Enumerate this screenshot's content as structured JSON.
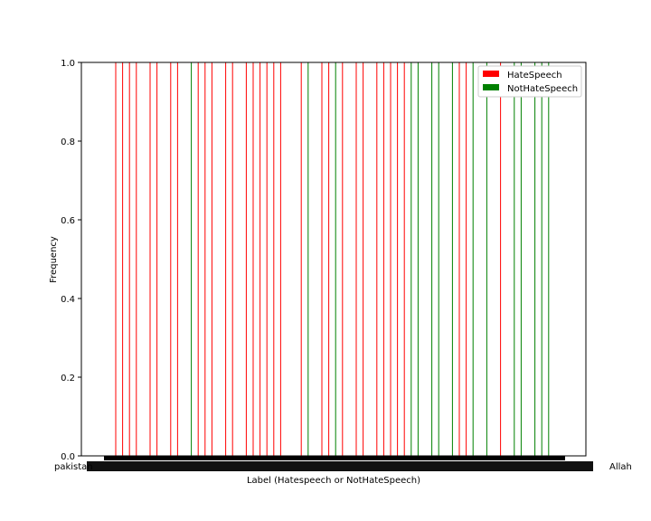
{
  "chart_data": {
    "type": "bar",
    "title": "",
    "xlabel": "Label (Hatespeech or NotHateSpeech)",
    "ylabel": "Frequency",
    "ylim": [
      0,
      1
    ],
    "yticks": [
      "0.0",
      "0.2",
      "0.4",
      "0.6",
      "0.8",
      "1.0"
    ],
    "grid": false,
    "legend_position": "top-right",
    "legend": [
      {
        "name": "HateSpeech",
        "color": "#ff0000"
      },
      {
        "name": "NotHateSpeech",
        "color": "#008000"
      }
    ],
    "x_tick_label_first": "pakistan",
    "x_tick_label_last": "Allah",
    "bars": [
      {
        "index": 0,
        "value": 1,
        "class": "HateSpeech"
      },
      {
        "index": 1,
        "value": 1,
        "class": "HateSpeech"
      },
      {
        "index": 2,
        "value": 1,
        "class": "HateSpeech"
      },
      {
        "index": 3,
        "value": 1,
        "class": "HateSpeech"
      },
      {
        "index": 5,
        "value": 1,
        "class": "HateSpeech"
      },
      {
        "index": 6,
        "value": 1,
        "class": "HateSpeech"
      },
      {
        "index": 8,
        "value": 1,
        "class": "HateSpeech"
      },
      {
        "index": 9,
        "value": 1,
        "class": "HateSpeech"
      },
      {
        "index": 11,
        "value": 1,
        "class": "NotHateSpeech"
      },
      {
        "index": 12,
        "value": 1,
        "class": "HateSpeech"
      },
      {
        "index": 13,
        "value": 1,
        "class": "HateSpeech"
      },
      {
        "index": 14,
        "value": 1,
        "class": "HateSpeech"
      },
      {
        "index": 16,
        "value": 1,
        "class": "HateSpeech"
      },
      {
        "index": 17,
        "value": 1,
        "class": "HateSpeech"
      },
      {
        "index": 19,
        "value": 1,
        "class": "HateSpeech"
      },
      {
        "index": 20,
        "value": 1,
        "class": "HateSpeech"
      },
      {
        "index": 21,
        "value": 1,
        "class": "HateSpeech"
      },
      {
        "index": 22,
        "value": 1,
        "class": "HateSpeech"
      },
      {
        "index": 23,
        "value": 1,
        "class": "HateSpeech"
      },
      {
        "index": 24,
        "value": 1,
        "class": "HateSpeech"
      },
      {
        "index": 27,
        "value": 1,
        "class": "HateSpeech"
      },
      {
        "index": 28,
        "value": 1,
        "class": "NotHateSpeech"
      },
      {
        "index": 30,
        "value": 1,
        "class": "HateSpeech"
      },
      {
        "index": 31,
        "value": 1,
        "class": "HateSpeech"
      },
      {
        "index": 32,
        "value": 1,
        "class": "NotHateSpeech"
      },
      {
        "index": 33,
        "value": 1,
        "class": "HateSpeech"
      },
      {
        "index": 35,
        "value": 1,
        "class": "HateSpeech"
      },
      {
        "index": 36,
        "value": 1,
        "class": "HateSpeech"
      },
      {
        "index": 38,
        "value": 1,
        "class": "HateSpeech"
      },
      {
        "index": 39,
        "value": 1,
        "class": "HateSpeech"
      },
      {
        "index": 40,
        "value": 1,
        "class": "HateSpeech"
      },
      {
        "index": 41,
        "value": 1,
        "class": "HateSpeech"
      },
      {
        "index": 42,
        "value": 1,
        "class": "HateSpeech"
      },
      {
        "index": 43,
        "value": 1,
        "class": "NotHateSpeech"
      },
      {
        "index": 44,
        "value": 1,
        "class": "NotHateSpeech"
      },
      {
        "index": 46,
        "value": 1,
        "class": "NotHateSpeech"
      },
      {
        "index": 47,
        "value": 1,
        "class": "NotHateSpeech"
      },
      {
        "index": 49,
        "value": 1,
        "class": "NotHateSpeech"
      },
      {
        "index": 50,
        "value": 1,
        "class": "HateSpeech"
      },
      {
        "index": 51,
        "value": 1,
        "class": "HateSpeech"
      },
      {
        "index": 52,
        "value": 1,
        "class": "NotHateSpeech"
      },
      {
        "index": 54,
        "value": 1,
        "class": "NotHateSpeech"
      },
      {
        "index": 56,
        "value": 1,
        "class": "HateSpeech"
      },
      {
        "index": 58,
        "value": 1,
        "class": "NotHateSpeech"
      },
      {
        "index": 59,
        "value": 1,
        "class": "NotHateSpeech"
      },
      {
        "index": 61,
        "value": 1,
        "class": "NotHateSpeech"
      },
      {
        "index": 62,
        "value": 1,
        "class": "NotHateSpeech"
      },
      {
        "index": 63,
        "value": 1,
        "class": "NotHateSpeech"
      }
    ]
  }
}
